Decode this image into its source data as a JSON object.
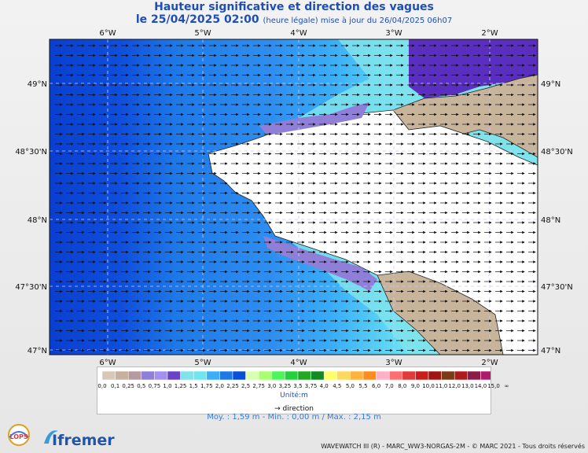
{
  "title": {
    "line1": "Hauteur significative et direction des vagues",
    "line2_main": "le 25/04/2025 02:00",
    "line2_note": "(heure légale) mise à jour du 26/04/2025 06h07"
  },
  "map": {
    "lon_labels": [
      "6°W",
      "5°W",
      "4°W",
      "3°W",
      "2°W"
    ],
    "lat_labels": [
      "49°N",
      "48°30'N",
      "48°N",
      "47°30'N",
      "47°N"
    ],
    "lon_range": [
      -6.6,
      -1.5
    ],
    "lat_range": [
      46.98,
      49.34
    ],
    "land_color": "#c8b49a",
    "direction": "east"
  },
  "legend": {
    "labels": [
      "0,0",
      "0,1",
      "0,25",
      "0,5",
      "0,75",
      "1,0",
      "1,25",
      "1,5",
      "1,75",
      "2,0",
      "2,25",
      "2,5",
      "2,75",
      "3,0",
      "3,25",
      "3,5",
      "3,75",
      "4,0",
      "4,5",
      "5,0",
      "5,5",
      "6,0",
      "7,0",
      "8,0",
      "9,0",
      "10,0",
      "11,0",
      "12,0",
      "13,0",
      "14,0",
      "15,0",
      "∞"
    ],
    "colors": [
      "#d8c8b8",
      "#c8b0a0",
      "#b49ba0",
      "#8f7fd8",
      "#a38ff0",
      "#6a42c8",
      "#7fe3ec",
      "#6ee6f2",
      "#3aaef7",
      "#1e79e8",
      "#0a4fd8",
      "#d9ffb0",
      "#a8ff70",
      "#4ef55a",
      "#22d23c",
      "#22a822",
      "#118c22",
      "#ffff66",
      "#ffd860",
      "#ffb23c",
      "#ff8c1e",
      "#ffb0c8",
      "#ff6f6f",
      "#e23a3a",
      "#c81e1e",
      "#a01414",
      "#7a3c14",
      "#b01a1a",
      "#8c1a4a",
      "#b01a6a",
      "#5a0a3a"
    ],
    "unit": "Unité:m",
    "direction_label": "direction"
  },
  "stats": {
    "text": "Moy. : 1,59 m   -   Min. : 0,00 m / Max. : 2,15 m"
  },
  "footer": {
    "logo_left": "LOPS",
    "logo_right": "Ifremer",
    "credit": "WAVEWATCH III (R) - MARC_WW3-NORGAS-2M - © MARC 2021 - Tous droits réservés"
  }
}
